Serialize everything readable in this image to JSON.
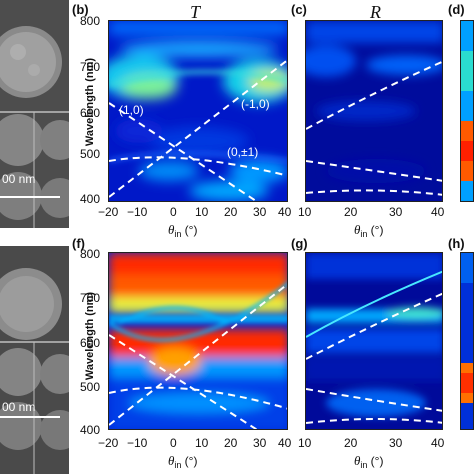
{
  "panels": {
    "b": {
      "label": "(b)",
      "title": "T"
    },
    "c": {
      "label": "(c)",
      "title": "R"
    },
    "d": {
      "label": "(d)"
    },
    "f": {
      "label": "(f)"
    },
    "g": {
      "label": "(g)"
    },
    "h": {
      "label": "(h)"
    }
  },
  "axes": {
    "ylabel": "Wavelength (nm)",
    "y_ticks": [
      "800",
      "700",
      "600",
      "500",
      "400"
    ],
    "x_ticks_left": [
      "−20",
      "−10",
      "0",
      "10",
      "20",
      "30",
      "40"
    ],
    "x_ticks_right": [
      "10",
      "20",
      "30",
      "40"
    ],
    "xlabel_symbol": "θ",
    "xlabel_sub": "in",
    "xlabel_unit": "(°)"
  },
  "annotations": {
    "order_1_0": "(1,0)",
    "order_m1_0": "(-1,0)",
    "order_0_pm1": "(0,±1)"
  },
  "sem": {
    "scale_top": "00 nm",
    "scale_bottom": "00 nm"
  },
  "colors": {
    "low": "#00008f",
    "mid": "#00c8ff",
    "high": "#ff2a00"
  },
  "chart_data": [
    {
      "type": "heatmap",
      "panel": "b",
      "title": "T",
      "xlabel": "θin (°)",
      "ylabel": "Wavelength (nm)",
      "xlim": [
        -20,
        40
      ],
      "ylim": [
        400,
        800
      ],
      "annotations": [
        "(1,0)",
        "(-1,0)",
        "(0,±1)"
      ]
    },
    {
      "type": "heatmap",
      "panel": "c",
      "title": "R",
      "xlabel": "θin (°)",
      "xlim": [
        10,
        40
      ],
      "ylim": [
        400,
        800
      ]
    },
    {
      "type": "heatmap",
      "panel": "f",
      "xlabel": "θin (°)",
      "ylabel": "Wavelength (nm)",
      "xlim": [
        -20,
        40
      ],
      "ylim": [
        400,
        800
      ]
    },
    {
      "type": "heatmap",
      "panel": "g",
      "xlabel": "θin (°)",
      "xlim": [
        10,
        40
      ],
      "ylim": [
        400,
        800
      ]
    }
  ]
}
